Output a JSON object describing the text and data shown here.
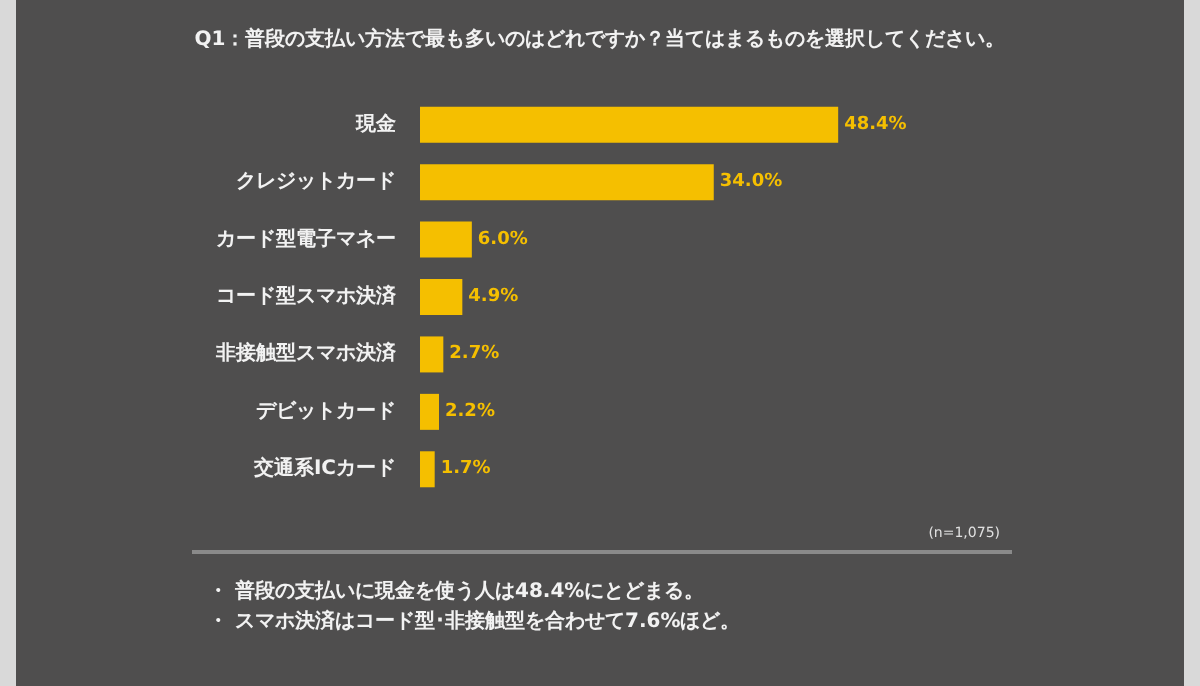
{
  "chart_data": {
    "type": "bar",
    "orientation": "horizontal",
    "title": "Q1：普段の支払い方法で最も多いのはどれですか？当てはまるものを選択してください。",
    "categories": [
      "現金",
      "クレジットカード",
      "カード型電子マネー",
      "コード型スマホ決済",
      "非接触型スマホ決済",
      "デビットカード",
      "交通系ICカード"
    ],
    "values": [
      48.4,
      34.0,
      6.0,
      4.9,
      2.7,
      2.2,
      1.7
    ],
    "value_labels": [
      "48.4%",
      "34.0%",
      "6.0%",
      "4.9%",
      "2.7%",
      "2.2%",
      "1.7%"
    ],
    "color": "#f5bf00",
    "annotations": [
      "(n=1,075)",
      "・ 普段の支払いに現金を使う人は48.4%にとどまる。",
      "・ スマホ決済はコード型･非接触型を合わせて7.6%ほど。"
    ]
  }
}
